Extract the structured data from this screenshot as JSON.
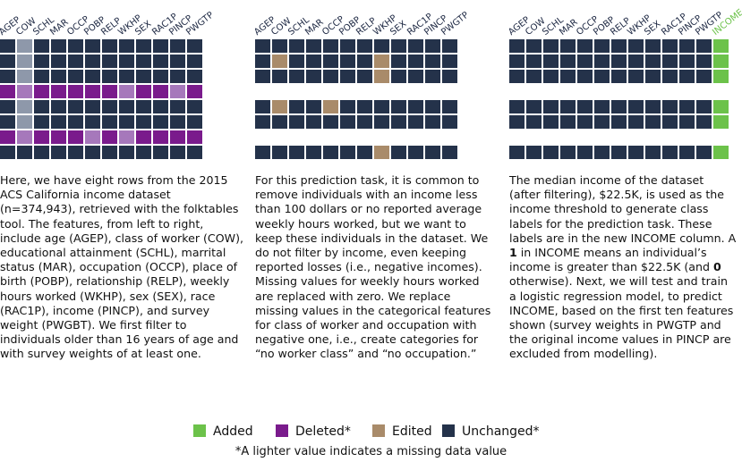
{
  "columns": [
    "AGEP",
    "COW",
    "SCHL",
    "MAR",
    "OCCP",
    "POBP",
    "RELP",
    "WKHP",
    "SEX",
    "RAC1P",
    "PINCP",
    "PWGTP"
  ],
  "income_label": "INCOME",
  "colors": {
    "unchanged": "#24324a",
    "deleted": "#7a1b8c",
    "deleted_missing": "#a678bb",
    "edited": "#a98b6a",
    "added": "#6cc24a",
    "missing_unchanged": "#8e98aa"
  },
  "panels": [
    {
      "id": "panel-1",
      "rows": [
        [
          "u",
          "m",
          "u",
          "u",
          "u",
          "u",
          "u",
          "u",
          "u",
          "u",
          "u",
          "u"
        ],
        [
          "u",
          "m",
          "u",
          "u",
          "u",
          "u",
          "u",
          "u",
          "u",
          "u",
          "u",
          "u"
        ],
        [
          "u",
          "m",
          "u",
          "u",
          "u",
          "u",
          "u",
          "u",
          "u",
          "u",
          "u",
          "u"
        ],
        [
          "d",
          "dm",
          "d",
          "d",
          "d",
          "d",
          "d",
          "dm",
          "d",
          "d",
          "dm",
          "d"
        ],
        [
          "u",
          "m",
          "u",
          "u",
          "u",
          "u",
          "u",
          "u",
          "u",
          "u",
          "u",
          "u"
        ],
        [
          "u",
          "m",
          "u",
          "u",
          "u",
          "u",
          "u",
          "u",
          "u",
          "u",
          "u",
          "u"
        ],
        [
          "d",
          "dm",
          "d",
          "d",
          "d",
          "dm",
          "d",
          "dm",
          "d",
          "d",
          "d",
          "d"
        ],
        [
          "u",
          "u",
          "u",
          "u",
          "u",
          "u",
          "u",
          "u",
          "u",
          "u",
          "u",
          "u"
        ]
      ],
      "text": "Here, we have eight rows from the 2015 ACS California income dataset (n=374,943), retrieved with the folktables tool. The features, from left to right, include age (AGEP), class of worker (COW), educational attainment (SCHL), marrital status (MAR), occupation (OCCP), place of birth (POBP), relationship (RELP), weekly hours worked (WKHP), sex (SEX), race (RAC1P), income (PINCP), and survey weight (PWGBT). We first filter to individuals older than 16 years of age and with survey weights of at least one."
    },
    {
      "id": "panel-2",
      "rows": [
        [
          "u",
          "u",
          "u",
          "u",
          "u",
          "u",
          "u",
          "u",
          "u",
          "u",
          "u",
          "u"
        ],
        [
          "u",
          "e",
          "u",
          "u",
          "u",
          "u",
          "u",
          "e",
          "u",
          "u",
          "u",
          "u"
        ],
        [
          "u",
          "u",
          "u",
          "u",
          "u",
          "u",
          "u",
          "e",
          "u",
          "u",
          "u",
          "u"
        ],
        null,
        [
          "u",
          "e",
          "u",
          "u",
          "e",
          "u",
          "u",
          "u",
          "u",
          "u",
          "u",
          "u"
        ],
        [
          "u",
          "u",
          "u",
          "u",
          "u",
          "u",
          "u",
          "u",
          "u",
          "u",
          "u",
          "u"
        ],
        null,
        [
          "u",
          "u",
          "u",
          "u",
          "u",
          "u",
          "u",
          "e",
          "u",
          "u",
          "u",
          "u"
        ]
      ],
      "text": "For this prediction task, it is common to remove individuals with an income less than 100 dollars or no reported average weekly hours worked, but we want to keep these individuals in the dataset. We do not filter by income, even keeping reported losses (i.e., negative incomes). Missing values for weekly hours worked are replaced with zero. We replace missing values in the categorical features for class of worker and occupation with negative one, i.e., create categories for “no worker class” and “no occupation.”"
    },
    {
      "id": "panel-3",
      "rows": [
        [
          "u",
          "u",
          "u",
          "u",
          "u",
          "u",
          "u",
          "u",
          "u",
          "u",
          "u",
          "u",
          "a"
        ],
        [
          "u",
          "u",
          "u",
          "u",
          "u",
          "u",
          "u",
          "u",
          "u",
          "u",
          "u",
          "u",
          "a"
        ],
        [
          "u",
          "u",
          "u",
          "u",
          "u",
          "u",
          "u",
          "u",
          "u",
          "u",
          "u",
          "u",
          "a"
        ],
        null,
        [
          "u",
          "u",
          "u",
          "u",
          "u",
          "u",
          "u",
          "u",
          "u",
          "u",
          "u",
          "u",
          "a"
        ],
        [
          "u",
          "u",
          "u",
          "u",
          "u",
          "u",
          "u",
          "u",
          "u",
          "u",
          "u",
          "u",
          "a"
        ],
        null,
        [
          "u",
          "u",
          "u",
          "u",
          "u",
          "u",
          "u",
          "u",
          "u",
          "u",
          "u",
          "u",
          "a"
        ]
      ],
      "text_parts": [
        "The median income of the dataset (after filtering), $22.5K, is used as the income threshold to generate class labels for the prediction task. These labels are in the new INCOME column. A ",
        "1",
        " in INCOME means an individual’s income is greater than $22.5K (and ",
        "0",
        " otherwise). Next, we will test and train a logistic regression model, to predict INCOME, based on the first ten features shown (survey weights in PWGTP and the original income values in PINCP are excluded from modelling)."
      ]
    }
  ],
  "legend": [
    {
      "label": "Added",
      "color": "#6cc24a"
    },
    {
      "label": "Deleted*",
      "color": "#7a1b8c"
    },
    {
      "label": "Edited",
      "color": "#a98b6a"
    },
    {
      "label": "Unchanged*",
      "color": "#24324a"
    }
  ],
  "footnote": "*A lighter value indicates a missing data value"
}
